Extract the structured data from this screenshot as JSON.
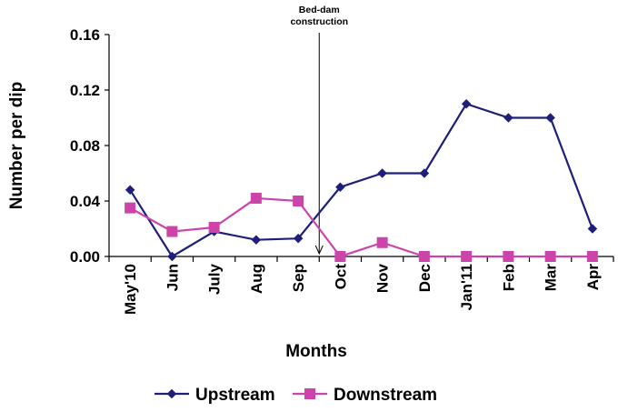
{
  "chart_data": {
    "type": "line",
    "categories": [
      "May'10",
      "Jun",
      "July",
      "Aug",
      "Sep",
      "Oct",
      "Nov",
      "Dec",
      "Jan'11",
      "Feb",
      "Mar",
      "Apr"
    ],
    "series": [
      {
        "name": "Upstream",
        "values": [
          0.048,
          0.0,
          0.018,
          0.012,
          0.013,
          0.05,
          0.06,
          0.06,
          0.11,
          0.1,
          0.1,
          0.02
        ],
        "color": "#1f1f7a",
        "marker": "diamond"
      },
      {
        "name": "Downstream",
        "values": [
          0.035,
          0.018,
          0.021,
          0.042,
          0.04,
          0.0,
          0.01,
          0.0,
          0.0,
          0.0,
          0.0,
          0.0
        ],
        "color": "#cc44aa",
        "marker": "square"
      }
    ],
    "xlabel": "Months",
    "ylabel": "Number  per dip",
    "ylim": [
      0,
      0.16
    ],
    "yticks": [
      "0.00",
      "0.04",
      "0.08",
      "0.12",
      "0.16"
    ],
    "grid": false,
    "legend": "bottom",
    "annotation": {
      "text_lines": [
        "Bed-dam",
        "construction"
      ],
      "between": [
        "Sep",
        "Oct"
      ]
    }
  }
}
